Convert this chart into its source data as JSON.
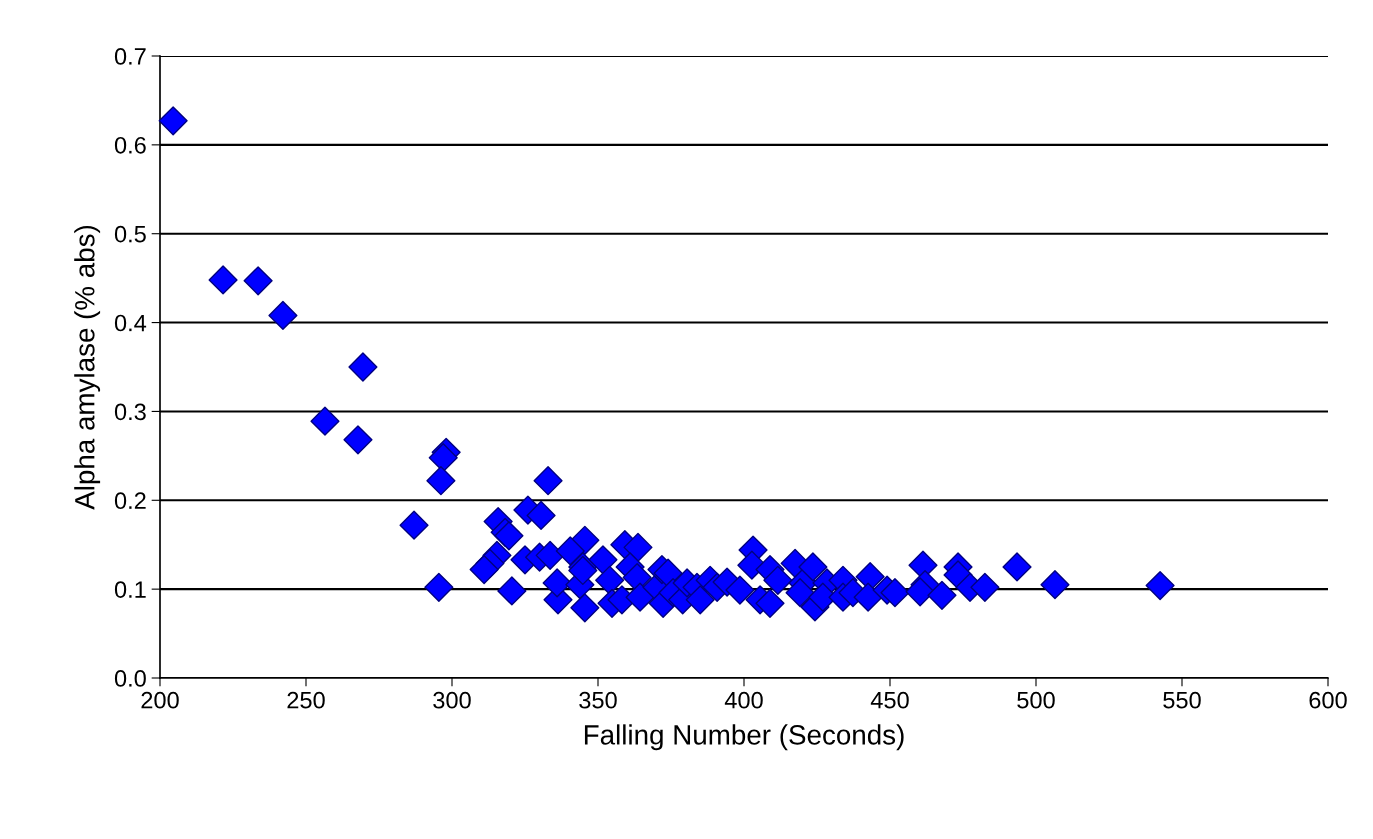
{
  "chart_data": {
    "type": "scatter",
    "xlabel": "Falling Number (Seconds)",
    "ylabel": "Alpha amylase (% abs)",
    "xlim": [
      200,
      600
    ],
    "xticks": [
      200,
      250,
      300,
      350,
      400,
      450,
      500,
      550,
      600
    ],
    "ylim": [
      0.0,
      0.7
    ],
    "yticks": [
      {
        "value": 0.0,
        "label": "0.0"
      },
      0.1,
      0.2,
      0.3,
      0.4,
      0.5,
      0.6,
      0.7
    ],
    "grid": "y",
    "marker": "diamond",
    "series": [
      {
        "color": "#0000ff",
        "x": [
          204.5,
          221.6,
          233.6,
          242.1,
          269.5,
          256.5,
          267.8,
          298,
          297,
          332.9,
          296.2,
          287,
          295.5,
          326,
          330.5,
          315.8,
          318.2,
          319.5,
          315.4,
          313,
          311,
          320.5,
          325,
          330,
          333.6,
          345.5,
          344.8,
          336.3,
          336,
          345.5,
          343.8,
          340.5,
          344.8,
          351.7,
          354,
          354.8,
          359.2,
          363.7,
          358.2,
          361,
          363.4,
          364.4,
          370.2,
          371.9,
          374,
          372.3,
          375.7,
          379,
          380.5,
          383.9,
          385,
          388.4,
          390.8,
          394.2,
          398.6,
          403.1,
          402.7,
          405.5,
          408.9,
          408.9,
          411.6,
          417.5,
          420.2,
          423.6,
          419.2,
          424.3,
          428.4,
          427,
          433.9,
          433.9,
          437.3,
          443.2,
          442.5,
          449,
          451.7,
          461.3,
          462,
          460.3,
          467.8,
          473.3,
          473.3,
          477.4,
          482.5,
          493.5,
          506.5,
          542.5
        ],
        "values": [
          0.627,
          0.448,
          0.447,
          0.408,
          0.35,
          0.289,
          0.268,
          0.254,
          0.248,
          0.222,
          0.222,
          0.172,
          0.102,
          0.189,
          0.183,
          0.176,
          0.164,
          0.16,
          0.138,
          0.129,
          0.122,
          0.098,
          0.133,
          0.136,
          0.138,
          0.155,
          0.125,
          0.088,
          0.107,
          0.079,
          0.105,
          0.143,
          0.121,
          0.133,
          0.11,
          0.084,
          0.15,
          0.147,
          0.088,
          0.125,
          0.113,
          0.091,
          0.102,
          0.122,
          0.118,
          0.084,
          0.096,
          0.088,
          0.107,
          0.102,
          0.088,
          0.11,
          0.102,
          0.108,
          0.099,
          0.144,
          0.127,
          0.088,
          0.122,
          0.084,
          0.11,
          0.129,
          0.107,
          0.125,
          0.096,
          0.08,
          0.107,
          0.091,
          0.11,
          0.091,
          0.096,
          0.114,
          0.091,
          0.099,
          0.096,
          0.127,
          0.105,
          0.097,
          0.093,
          0.125,
          0.116,
          0.102,
          0.102,
          0.125,
          0.105,
          0.104
        ]
      }
    ]
  }
}
